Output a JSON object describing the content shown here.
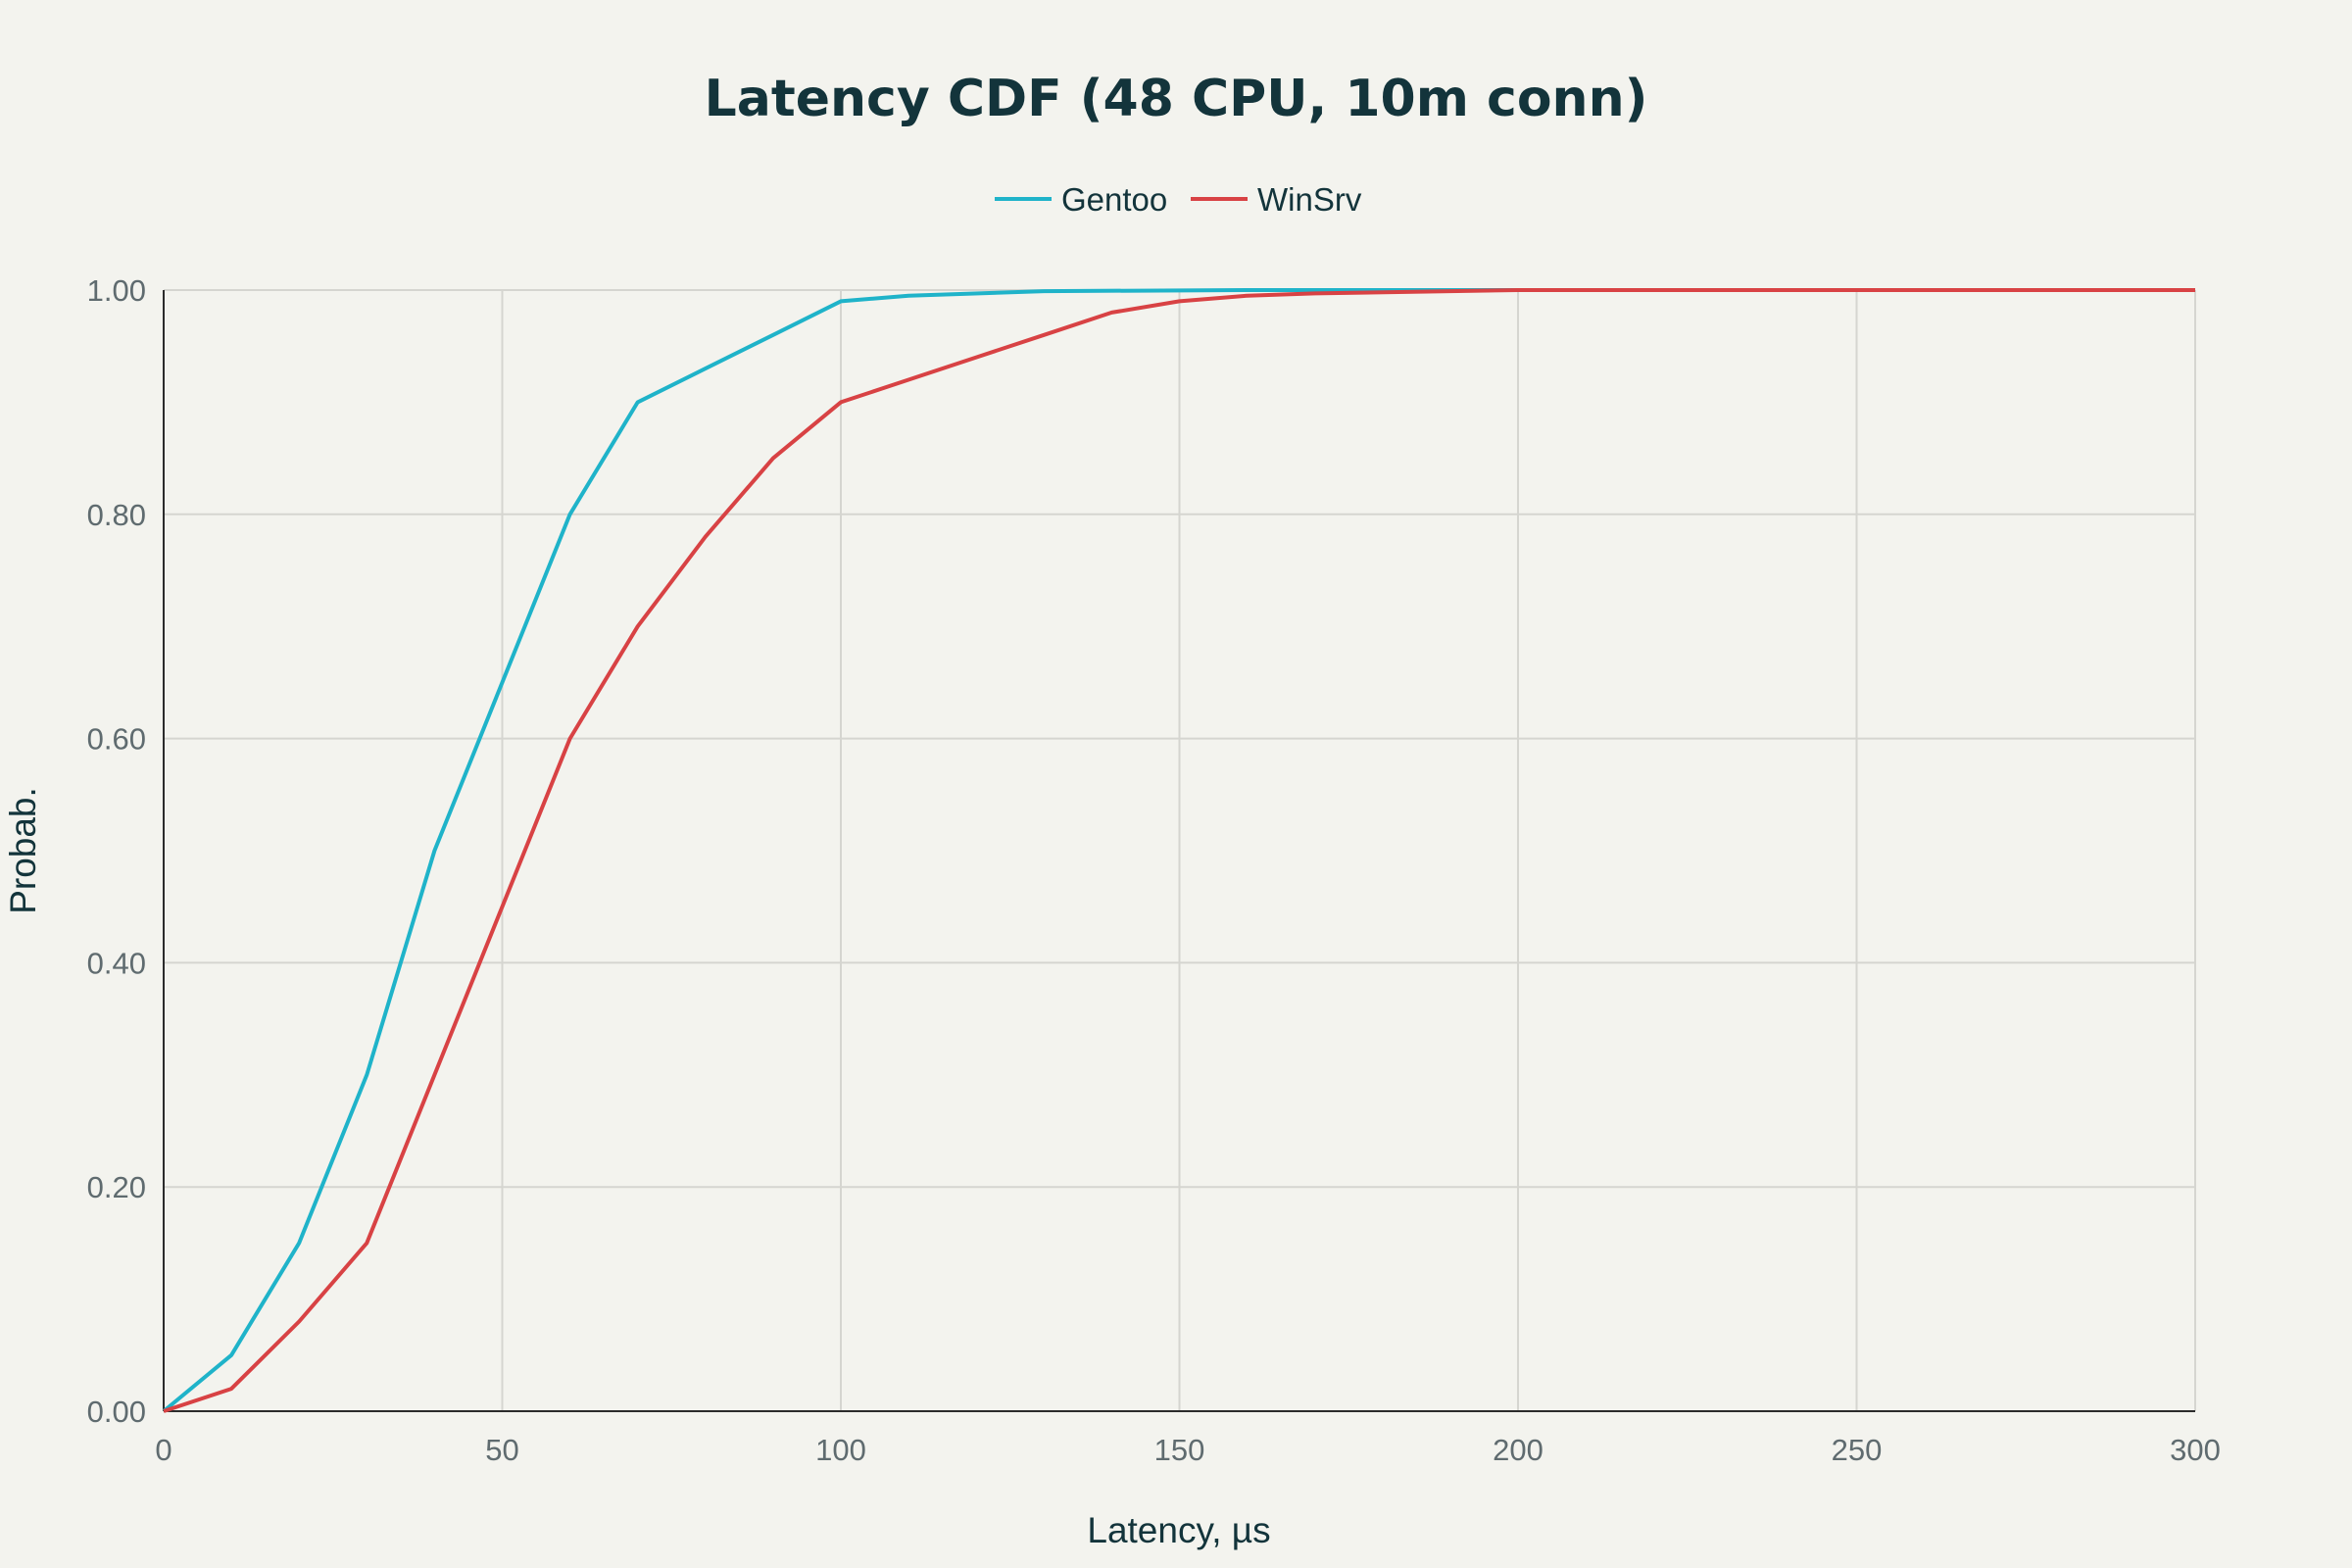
{
  "chart_data": {
    "type": "line",
    "title": "Latency CDF (48 CPU, 10m conn)",
    "xlabel": "Latency, µs",
    "ylabel": "Probab.",
    "xlim": [
      0,
      300
    ],
    "ylim": [
      0,
      1
    ],
    "x_ticks": [
      0,
      50,
      100,
      150,
      200,
      250,
      300
    ],
    "x_tick_labels": [
      "0",
      "50",
      "100",
      "150",
      "200",
      "250",
      "300"
    ],
    "y_ticks": [
      0,
      0.2,
      0.4,
      0.6,
      0.8,
      1.0
    ],
    "y_tick_labels": [
      "0.00",
      "0.20",
      "0.40",
      "0.60",
      "0.80",
      "1.00"
    ],
    "grid": true,
    "legend_position": "top-center",
    "series": [
      {
        "name": "Gentoo",
        "color": "#1fb3c9",
        "points": [
          [
            0,
            0
          ],
          [
            10,
            0.05
          ],
          [
            20,
            0.15
          ],
          [
            30,
            0.3
          ],
          [
            40,
            0.5
          ],
          [
            50,
            0.65
          ],
          [
            60,
            0.8
          ],
          [
            70,
            0.9
          ],
          [
            80,
            0.93
          ],
          [
            90,
            0.96
          ],
          [
            100,
            0.99
          ],
          [
            110,
            0.995
          ],
          [
            130,
            0.999
          ],
          [
            160,
            1.0
          ],
          [
            300,
            1.0
          ]
        ]
      },
      {
        "name": "WinSrv",
        "color": "#d84244",
        "points": [
          [
            0,
            0
          ],
          [
            10,
            0.02
          ],
          [
            20,
            0.08
          ],
          [
            30,
            0.15
          ],
          [
            40,
            0.3
          ],
          [
            50,
            0.45
          ],
          [
            60,
            0.6
          ],
          [
            70,
            0.7
          ],
          [
            80,
            0.78
          ],
          [
            90,
            0.85
          ],
          [
            100,
            0.9
          ],
          [
            110,
            0.92
          ],
          [
            120,
            0.94
          ],
          [
            130,
            0.96
          ],
          [
            140,
            0.98
          ],
          [
            150,
            0.99
          ],
          [
            160,
            0.995
          ],
          [
            170,
            0.997
          ],
          [
            200,
            1.0
          ],
          [
            300,
            1.0
          ]
        ]
      }
    ]
  }
}
